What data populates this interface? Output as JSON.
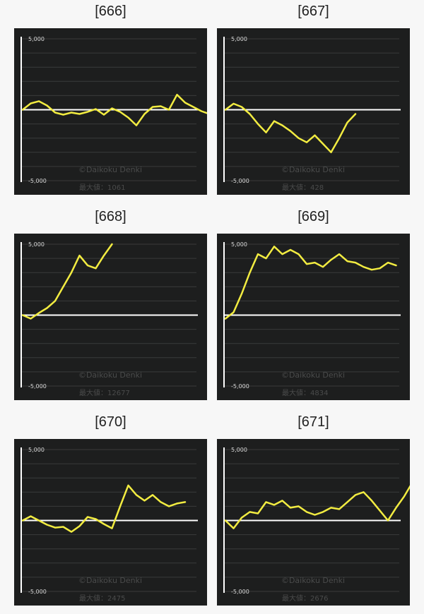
{
  "style": {
    "line_color": "#f2ec41",
    "zero_line_color": "#ffffff",
    "grid_color": "#3a3b3b",
    "panel_bg": "#1d1e1e"
  },
  "chart_data": [
    {
      "id": "666",
      "title": "[666]",
      "type": "line",
      "ylim": [
        -5000,
        5000
      ],
      "y_tick_top": "5,000",
      "y_tick_bottom": "-5,000",
      "watermark": "©Daikoku Denki",
      "max_label": "最大値：1061",
      "grid": true,
      "y": [
        0,
        450,
        600,
        300,
        -200,
        -350,
        -200,
        -300,
        -150,
        50,
        -350,
        100,
        -150,
        -550,
        -1100,
        -300,
        200,
        250,
        0,
        1061,
        500,
        200,
        -100,
        -300
      ]
    },
    {
      "id": "667",
      "title": "[667]",
      "type": "line",
      "ylim": [
        -5000,
        5000
      ],
      "y_tick_top": "5,000",
      "y_tick_bottom": "-5,000",
      "watermark": "©Daikoku Denki",
      "max_label": "最大値：428",
      "grid": true,
      "y": [
        0,
        428,
        200,
        -300,
        -1000,
        -1600,
        -800,
        -1100,
        -1500,
        -2000,
        -2300,
        -1800,
        -2400,
        -3000,
        -2000,
        -900,
        -300
      ]
    },
    {
      "id": "668",
      "title": "[668]",
      "type": "line",
      "ylim": [
        -5000,
        5000
      ],
      "y_tick_top": "5,000",
      "y_tick_bottom": "-5,000",
      "watermark": "©Daikoku Denki",
      "max_label": "最大値：12677",
      "grid": true,
      "y": [
        0,
        -250,
        150,
        500,
        1000,
        2000,
        3000,
        4200,
        3500,
        3300,
        4200,
        5000
      ]
    },
    {
      "id": "669",
      "title": "[669]",
      "type": "line",
      "ylim": [
        -5000,
        5000
      ],
      "y_tick_top": "5,000",
      "y_tick_bottom": "-5,000",
      "watermark": "©Daikoku Denki",
      "max_label": "最大値：4834",
      "grid": true,
      "y": [
        -250,
        200,
        1500,
        3000,
        4300,
        4000,
        4834,
        4300,
        4600,
        4300,
        3600,
        3700,
        3400,
        3900,
        4300,
        3800,
        3700,
        3400,
        3200,
        3300,
        3700,
        3500
      ]
    },
    {
      "id": "670",
      "title": "[670]",
      "type": "line",
      "ylim": [
        -5000,
        5000
      ],
      "y_tick_top": "5,000",
      "y_tick_bottom": "-5,000",
      "watermark": "©Daikoku Denki",
      "max_label": "最大値：2475",
      "grid": true,
      "y": [
        0,
        300,
        0,
        -300,
        -500,
        -450,
        -800,
        -400,
        250,
        100,
        -250,
        -550,
        1000,
        2475,
        1800,
        1400,
        1800,
        1300,
        1000,
        1200,
        1300
      ]
    },
    {
      "id": "671",
      "title": "[671]",
      "type": "line",
      "ylim": [
        -5000,
        5000
      ],
      "y_tick_top": "5,000",
      "y_tick_bottom": "-5,000",
      "watermark": "©Daikoku Denki",
      "max_label": "最大値：2676",
      "grid": true,
      "y": [
        0,
        -550,
        200,
        600,
        500,
        1300,
        1100,
        1400,
        900,
        1000,
        600,
        400,
        600,
        900,
        800,
        1300,
        1800,
        2000,
        1400,
        700,
        0,
        900,
        1700,
        2676
      ]
    }
  ]
}
